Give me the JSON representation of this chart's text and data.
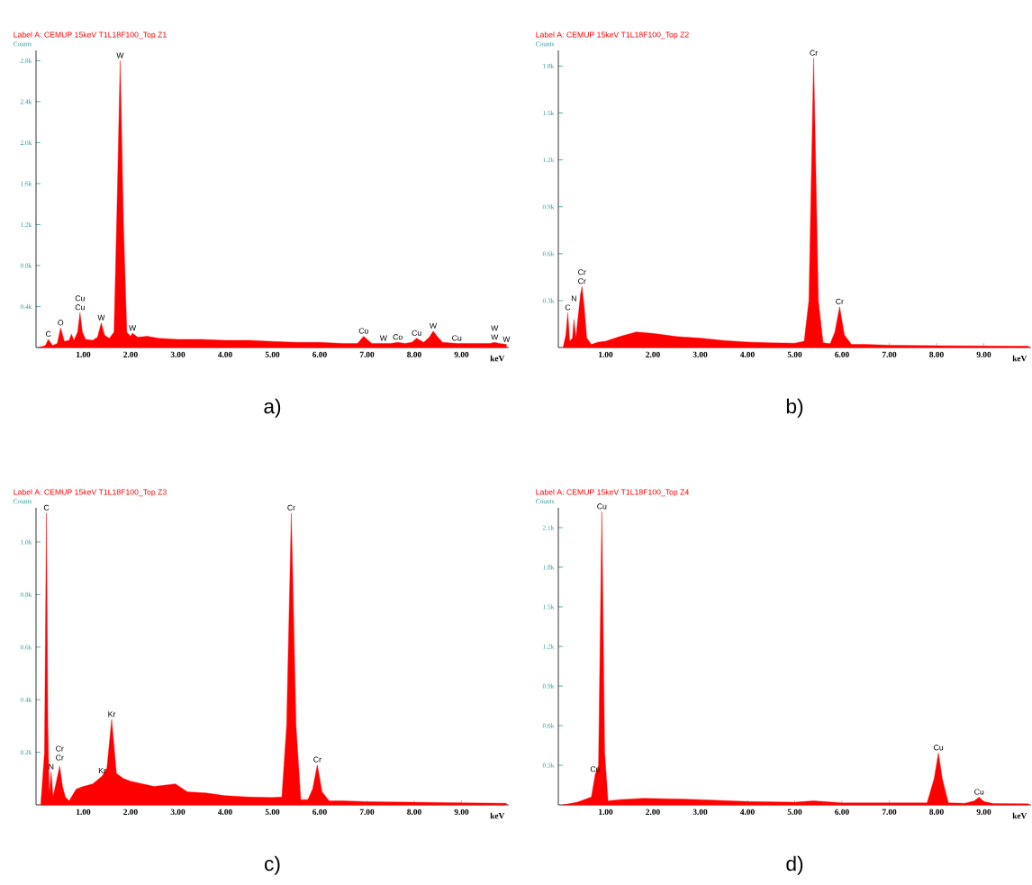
{
  "chart_data": [
    {
      "type": "area",
      "title": "Label A: CEMUP      15keV    T1L18F100_Top  Z1",
      "xlabel": "keV",
      "ylabel": "Counts",
      "color": "#ff0000",
      "xlim": [
        0,
        10
      ],
      "ylim": [
        0,
        2900
      ],
      "xticks": [
        {
          "value": 1,
          "label": "1.00"
        },
        {
          "value": 2,
          "label": "2.00"
        },
        {
          "value": 3,
          "label": "3.00"
        },
        {
          "value": 4,
          "label": "4.00"
        },
        {
          "value": 5,
          "label": "5.00"
        },
        {
          "value": 6,
          "label": "6.00"
        },
        {
          "value": 7,
          "label": "7.00"
        },
        {
          "value": 8,
          "label": "8.00"
        },
        {
          "value": 9,
          "label": "9.00"
        }
      ],
      "yticks": [
        {
          "value": 400,
          "label": "0.4k"
        },
        {
          "value": 800,
          "label": "0.8k"
        },
        {
          "value": 1200,
          "label": "1.2k"
        },
        {
          "value": 1600,
          "label": "1.6k"
        },
        {
          "value": 2000,
          "label": "2.0k"
        },
        {
          "value": 2400,
          "label": "2.4k"
        },
        {
          "value": 2800,
          "label": "2.8k"
        }
      ],
      "x": [
        0.05,
        0.2,
        0.26,
        0.35,
        0.45,
        0.52,
        0.6,
        0.7,
        0.75,
        0.8,
        0.88,
        0.93,
        0.98,
        1.05,
        1.2,
        1.3,
        1.38,
        1.45,
        1.55,
        1.65,
        1.72,
        1.78,
        1.85,
        1.92,
        2.0,
        2.04,
        2.15,
        2.35,
        2.6,
        3.0,
        3.5,
        4.0,
        4.5,
        5.0,
        5.5,
        6.0,
        6.5,
        6.8,
        6.93,
        7.1,
        7.35,
        7.5,
        7.65,
        7.8,
        7.95,
        8.05,
        8.2,
        8.32,
        8.4,
        8.5,
        8.6,
        8.9,
        9.3,
        9.6,
        9.7,
        9.8,
        9.95
      ],
      "values": [
        0,
        20,
        80,
        20,
        40,
        190,
        60,
        70,
        130,
        70,
        150,
        340,
        150,
        80,
        70,
        100,
        240,
        120,
        90,
        150,
        1500,
        2800,
        1200,
        150,
        110,
        140,
        100,
        110,
        90,
        80,
        80,
        70,
        70,
        60,
        50,
        50,
        40,
        40,
        110,
        40,
        40,
        40,
        50,
        40,
        50,
        90,
        50,
        100,
        160,
        100,
        50,
        40,
        40,
        40,
        50,
        40,
        30
      ],
      "annotations": [
        "a)",
        {
          "text": "C",
          "x": 0.26,
          "y": 80
        },
        {
          "text": "O",
          "x": 0.52,
          "y": 190
        },
        {
          "text": "Cu",
          "x": 0.93,
          "y": 340
        },
        {
          "text": "Cu",
          "x": 0.93,
          "y": 340
        },
        {
          "text": "W",
          "x": 1.38,
          "y": 240
        },
        {
          "text": "W",
          "x": 1.78,
          "y": 2800
        },
        {
          "text": "W",
          "x": 2.04,
          "y": 140
        },
        {
          "text": "Co",
          "x": 6.93,
          "y": 110
        },
        {
          "text": "W",
          "x": 7.35,
          "y": 40
        },
        {
          "text": "Co",
          "x": 7.65,
          "y": 50
        },
        {
          "text": "Cu",
          "x": 8.05,
          "y": 90
        },
        {
          "text": "W",
          "x": 8.4,
          "y": 160
        },
        {
          "text": "Cu",
          "x": 8.9,
          "y": 40
        },
        {
          "text": "W",
          "x": 9.7,
          "y": 50
        },
        {
          "text": "W",
          "x": 9.7,
          "y": 50
        },
        {
          "text": "W",
          "x": 9.95,
          "y": 30
        }
      ]
    },
    {
      "type": "area",
      "title": "Label A: CEMUP      15keV    T1L18F100_Top  Z2",
      "xlabel": "keV",
      "ylabel": "Counts",
      "color": "#ff0000",
      "xlim": [
        0,
        10
      ],
      "ylim": [
        0,
        1900
      ],
      "xticks": [
        {
          "value": 1,
          "label": "1.00"
        },
        {
          "value": 2,
          "label": "2.00"
        },
        {
          "value": 3,
          "label": "3.00"
        },
        {
          "value": 4,
          "label": "4.00"
        },
        {
          "value": 5,
          "label": "5.00"
        },
        {
          "value": 6,
          "label": "6.00"
        },
        {
          "value": 7,
          "label": "7.00"
        },
        {
          "value": 8,
          "label": "8.00"
        },
        {
          "value": 9,
          "label": "9.00"
        }
      ],
      "yticks": [
        {
          "value": 300,
          "label": "0.3k"
        },
        {
          "value": 600,
          "label": "0.6k"
        },
        {
          "value": 900,
          "label": "0.9k"
        },
        {
          "value": 1200,
          "label": "1.2k"
        },
        {
          "value": 1500,
          "label": "1.5k"
        },
        {
          "value": 1800,
          "label": "1.8k"
        }
      ],
      "x": [
        0.1,
        0.16,
        0.2,
        0.24,
        0.3,
        0.33,
        0.37,
        0.42,
        0.47,
        0.5,
        0.55,
        0.6,
        0.7,
        0.85,
        1.0,
        1.3,
        1.65,
        2.0,
        2.5,
        3.0,
        3.5,
        4.0,
        4.5,
        5.0,
        5.2,
        5.3,
        5.4,
        5.5,
        5.6,
        5.75,
        5.85,
        5.95,
        6.05,
        6.2,
        6.5,
        7.0,
        8.0,
        9.0,
        9.95
      ],
      "values": [
        0,
        80,
        222,
        40,
        60,
        180,
        60,
        200,
        340,
        390,
        250,
        60,
        20,
        35,
        40,
        70,
        100,
        90,
        70,
        60,
        45,
        35,
        30,
        28,
        40,
        300,
        1850,
        300,
        30,
        25,
        100,
        260,
        80,
        20,
        20,
        15,
        12,
        10,
        8
      ],
      "annotations": [
        "b)",
        {
          "text": "C",
          "x": 0.2,
          "y": 222
        },
        {
          "text": "N",
          "x": 0.33,
          "y": 180
        },
        {
          "text": "Cr",
          "x": 0.5,
          "y": 390
        },
        {
          "text": "Cr",
          "x": 0.5,
          "y": 390
        },
        {
          "text": "Cr",
          "x": 5.4,
          "y": 1850
        },
        {
          "text": "Cr",
          "x": 5.95,
          "y": 260
        }
      ]
    },
    {
      "type": "area",
      "title": "Label A: CEMUP      15keV    T1L18F100_Top  Z3",
      "xlabel": "keV",
      "ylabel": "Counts",
      "color": "#ff0000",
      "xlim": [
        0,
        10
      ],
      "ylim": [
        0,
        1130
      ],
      "xticks": [
        {
          "value": 1,
          "label": "1.00"
        },
        {
          "value": 2,
          "label": "2.00"
        },
        {
          "value": 3,
          "label": "3.00"
        },
        {
          "value": 4,
          "label": "4.00"
        },
        {
          "value": 5,
          "label": "5.00"
        },
        {
          "value": 6,
          "label": "6.00"
        },
        {
          "value": 7,
          "label": "7.00"
        },
        {
          "value": 8,
          "label": "8.00"
        },
        {
          "value": 9,
          "label": "9.00"
        }
      ],
      "yticks": [
        {
          "value": 200,
          "label": "0.2k"
        },
        {
          "value": 400,
          "label": "0.4k"
        },
        {
          "value": 600,
          "label": "0.6k"
        },
        {
          "value": 800,
          "label": "0.8k"
        },
        {
          "value": 1000,
          "label": "1.0k"
        }
      ],
      "x": [
        0.1,
        0.18,
        0.22,
        0.25,
        0.28,
        0.32,
        0.36,
        0.42,
        0.5,
        0.56,
        0.62,
        0.7,
        0.85,
        1.0,
        1.2,
        1.4,
        1.5,
        1.6,
        1.7,
        1.85,
        2.0,
        2.5,
        2.95,
        3.2,
        3.6,
        4.0,
        4.5,
        5.0,
        5.2,
        5.3,
        5.4,
        5.5,
        5.6,
        5.75,
        5.85,
        5.95,
        6.05,
        6.2,
        6.5,
        7.0,
        8.0,
        9.0,
        9.95
      ],
      "values": [
        0,
        200,
        1110,
        300,
        40,
        125,
        30,
        80,
        147,
        70,
        30,
        15,
        60,
        70,
        80,
        110,
        140,
        325,
        120,
        100,
        90,
        70,
        80,
        50,
        45,
        35,
        30,
        28,
        30,
        300,
        1110,
        300,
        20,
        20,
        60,
        152,
        50,
        15,
        15,
        12,
        10,
        8,
        6
      ],
      "annotations": [
        "c)",
        {
          "text": "C",
          "x": 0.22,
          "y": 1110
        },
        {
          "text": "N",
          "x": 0.32,
          "y": 125
        },
        {
          "text": "Cr",
          "x": 0.5,
          "y": 147
        },
        {
          "text": "Cr",
          "x": 0.5,
          "y": 147
        },
        {
          "text": "Kr",
          "x": 1.4,
          "y": 110
        },
        {
          "text": "Kr",
          "x": 1.6,
          "y": 325
        },
        {
          "text": "Cr",
          "x": 5.4,
          "y": 1110
        },
        {
          "text": "Cr",
          "x": 5.95,
          "y": 152
        }
      ]
    },
    {
      "type": "area",
      "title": "Label A: CEMUP      15keV    T1L18F100_Top  Z4",
      "xlabel": "keV",
      "ylabel": "Counts",
      "color": "#ff0000",
      "xlim": [
        0,
        10
      ],
      "ylim": [
        0,
        2250
      ],
      "xticks": [
        {
          "value": 1,
          "label": "1.00"
        },
        {
          "value": 2,
          "label": "2.00"
        },
        {
          "value": 3,
          "label": "3.00"
        },
        {
          "value": 4,
          "label": "4.00"
        },
        {
          "value": 5,
          "label": "5.00"
        },
        {
          "value": 6,
          "label": "6.00"
        },
        {
          "value": 7,
          "label": "7.00"
        },
        {
          "value": 8,
          "label": "8.00"
        },
        {
          "value": 9,
          "label": "9.00"
        }
      ],
      "yticks": [
        {
          "value": 300,
          "label": "0.3k"
        },
        {
          "value": 600,
          "label": "0.6k"
        },
        {
          "value": 900,
          "label": "0.9k"
        },
        {
          "value": 1200,
          "label": "1.2k"
        },
        {
          "value": 1500,
          "label": "1.5k"
        },
        {
          "value": 1800,
          "label": "1.8k"
        },
        {
          "value": 2100,
          "label": "2.1k"
        }
      ],
      "x": [
        0.1,
        0.4,
        0.7,
        0.78,
        0.85,
        0.92,
        0.98,
        1.05,
        1.3,
        1.8,
        2.5,
        3.0,
        4.0,
        5.0,
        5.4,
        6.0,
        7.0,
        7.8,
        7.95,
        8.04,
        8.12,
        8.25,
        8.6,
        8.8,
        8.9,
        9.0,
        9.2,
        9.95
      ],
      "values": [
        0,
        20,
        60,
        230,
        300,
        2220,
        400,
        30,
        40,
        50,
        45,
        40,
        25,
        20,
        30,
        15,
        15,
        15,
        200,
        393,
        200,
        15,
        12,
        30,
        58,
        25,
        10,
        8
      ],
      "annotations": [
        "d)",
        {
          "text": "Cu",
          "x": 0.92,
          "y": 2220
        },
        {
          "text": "Cu",
          "x": 0.78,
          "y": 230
        },
        {
          "text": "Cu",
          "x": 8.04,
          "y": 393
        },
        {
          "text": "Cu",
          "x": 8.9,
          "y": 58
        }
      ]
    }
  ]
}
